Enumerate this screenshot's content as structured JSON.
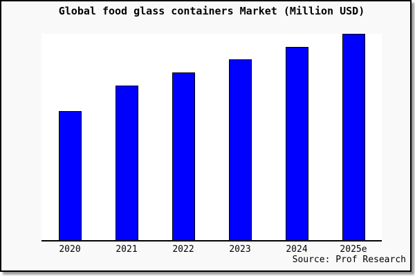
{
  "title": "Global food glass containers Market (Million USD)",
  "source": "Source: Prof Research",
  "colors": {
    "card_background": "#f9f9f9",
    "plot_background": "#ffffff",
    "frame_border": "#000000",
    "bar_fill": "#0000ff",
    "bar_border": "#000000",
    "axis_line": "#000000",
    "text": "#000000"
  },
  "chart_data": {
    "type": "bar",
    "title": "Global food glass containers Market (Million USD)",
    "categories": [
      "2020",
      "2021",
      "2022",
      "2023",
      "2024",
      "2025e"
    ],
    "values": [
      62.7,
      75.0,
      81.3,
      87.7,
      93.7,
      100
    ],
    "values_note": "No y-axis ticks or data labels are shown in the image; values are bar heights as a percentage of the tallest bar (2025e = 100).",
    "xlabel": "",
    "ylabel": "",
    "ylim": [
      0,
      100
    ],
    "y_axis_visible": false,
    "grid": false,
    "legend": "none",
    "source_caption": "Source: Prof Research"
  }
}
